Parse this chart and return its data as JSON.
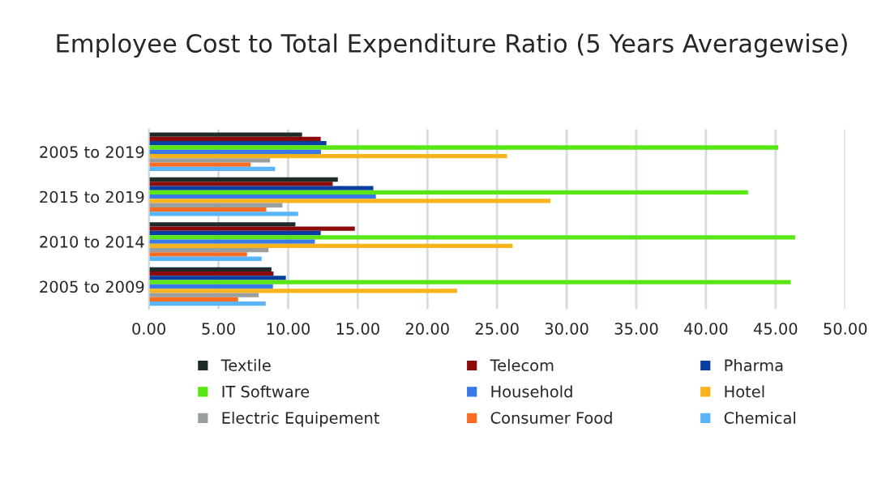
{
  "chart_data": {
    "type": "bar",
    "orientation": "horizontal",
    "title": "Employee Cost to Total Expenditure Ratio (5 Years Averagewise)",
    "categories": [
      "2005 to 2019",
      "2015 to 2019",
      "2010 to 2014",
      "2005 to 2009"
    ],
    "series": [
      {
        "name": "Textile",
        "color": "#1f2a2a",
        "values": [
          11.0,
          13.57,
          10.52,
          8.8
        ]
      },
      {
        "name": "Telecom",
        "color": "#8b0a0a",
        "values": [
          12.34,
          13.2,
          14.79,
          8.95
        ]
      },
      {
        "name": "Pharma",
        "color": "#0a3fa0",
        "values": [
          12.75,
          16.12,
          12.34,
          9.84
        ]
      },
      {
        "name": "IT Software",
        "color": "#5ae614",
        "values": [
          45.19,
          43.02,
          46.4,
          46.09
        ]
      },
      {
        "name": "Household",
        "color": "#3a78e8",
        "values": [
          12.36,
          16.3,
          11.92,
          8.91
        ]
      },
      {
        "name": "Hotel",
        "color": "#f8b41c",
        "values": [
          25.72,
          28.84,
          26.12,
          22.13
        ]
      },
      {
        "name": "Electric Equipement",
        "color": "#9a9e9e",
        "values": [
          8.7,
          9.59,
          8.59,
          7.89
        ]
      },
      {
        "name": "Consumer Food",
        "color": "#f86c24",
        "values": [
          7.31,
          8.43,
          7.05,
          6.41
        ]
      },
      {
        "name": "Chemical",
        "color": "#5ab4f8",
        "values": [
          9.07,
          10.72,
          8.1,
          8.39
        ]
      }
    ],
    "xlim": [
      0,
      50
    ],
    "xticks": [
      {
        "value": 0,
        "label": "0.00"
      },
      {
        "value": 5,
        "label": "5.00"
      },
      {
        "value": 10,
        "label": "10.00"
      },
      {
        "value": 15,
        "label": "15.00"
      },
      {
        "value": 20,
        "label": "20.00"
      },
      {
        "value": 25,
        "label": "25.00"
      },
      {
        "value": 30,
        "label": "30.00"
      },
      {
        "value": 35,
        "label": "35.00"
      },
      {
        "value": 40,
        "label": "40.00"
      },
      {
        "value": 45,
        "label": "45.00"
      },
      {
        "value": 50,
        "label": "50.00"
      }
    ],
    "grid": "x",
    "legend": "bottom"
  }
}
